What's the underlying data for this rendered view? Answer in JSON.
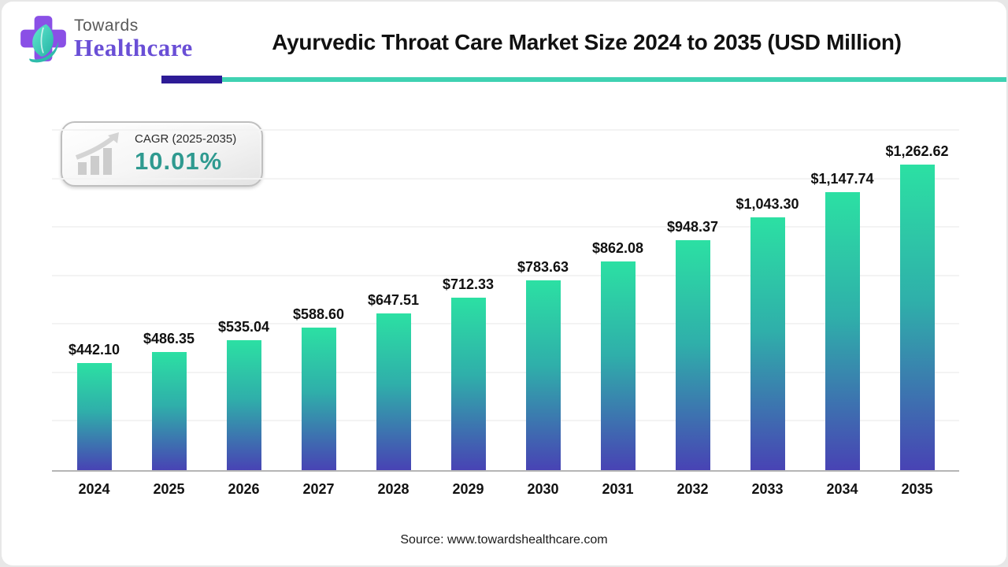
{
  "logo": {
    "line1": "Towards",
    "line2": "Healthcare"
  },
  "header": {
    "title": "Ayurvedic Throat Care Market Size 2024 to 2035 (USD Million)"
  },
  "cagr_badge": {
    "label": "CAGR (2025-2035)",
    "value": "10.01%"
  },
  "chart_data": {
    "type": "bar",
    "title": "Ayurvedic Throat Care Market Size 2024 to 2035 (USD Million)",
    "categories": [
      "2024",
      "2025",
      "2026",
      "2027",
      "2028",
      "2029",
      "2030",
      "2031",
      "2032",
      "2033",
      "2034",
      "2035"
    ],
    "values": [
      442.1,
      486.35,
      535.04,
      588.6,
      647.51,
      712.33,
      783.63,
      862.08,
      948.37,
      1043.3,
      1147.74,
      1262.62
    ],
    "value_labels": [
      "$442.10",
      "$486.35",
      "$535.04",
      "$588.60",
      "$647.51",
      "$712.33",
      "$783.63",
      "$862.08",
      "$948.37",
      "$1,043.30",
      "$1,147.74",
      "$1,262.62"
    ],
    "xlabel": "",
    "ylabel": "USD Million",
    "ylim": [
      0,
      1440
    ],
    "gridline_step": 200,
    "grid": "horizontal-faint",
    "legend": "none"
  },
  "source": {
    "text": "Source: www.towardshealthcare.com"
  },
  "colors": {
    "bar_top": "#2ce0a3",
    "bar_mid": "#2fafaa",
    "bar_bottom": "#4843b4",
    "divider_purple": "#2d1b96",
    "divider_teal": "#3fd2b2",
    "cagr_value": "#2f9a90",
    "logo_purple": "#8a50e6",
    "logo_leaf": "#3fd2b8"
  }
}
